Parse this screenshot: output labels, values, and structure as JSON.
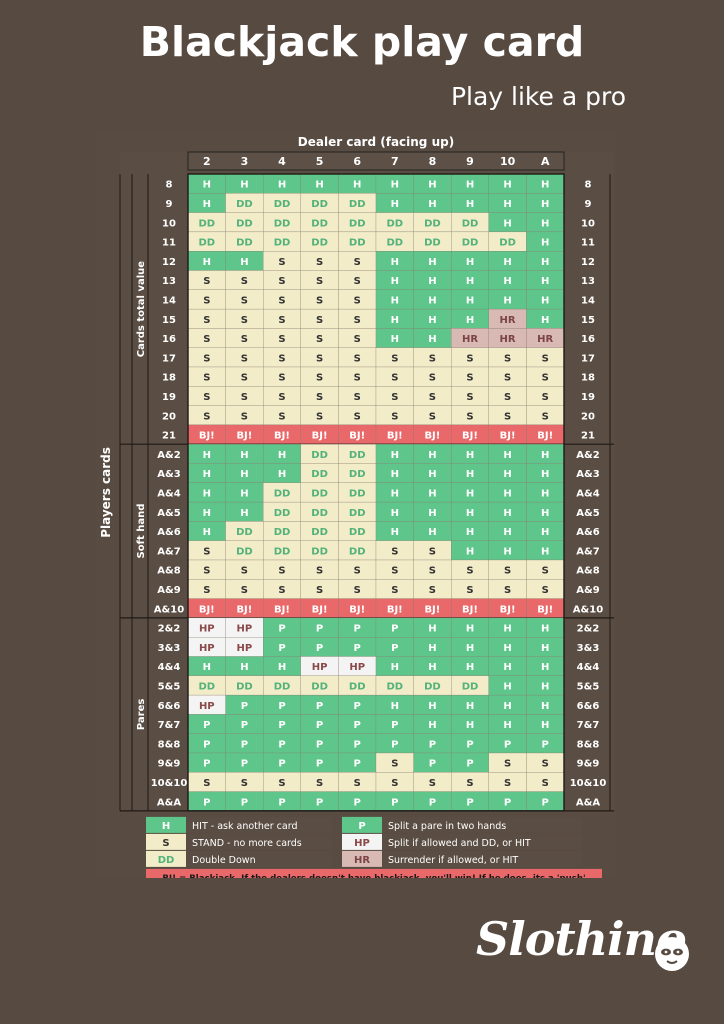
{
  "title": "Blackjack play card",
  "subtitle": "Play like a pro",
  "chart": {
    "dealer_header": "Dealer card (facing up)",
    "dealer_cards": [
      "2",
      "3",
      "4",
      "5",
      "6",
      "7",
      "8",
      "9",
      "10",
      "A"
    ],
    "players_cards_label": "Players cards",
    "sections": [
      {
        "label": "Cards total value",
        "rows": [
          {
            "hand": "8",
            "actions": [
              "H",
              "H",
              "H",
              "H",
              "H",
              "H",
              "H",
              "H",
              "H",
              "H"
            ]
          },
          {
            "hand": "9",
            "actions": [
              "H",
              "DD",
              "DD",
              "DD",
              "DD",
              "H",
              "H",
              "H",
              "H",
              "H"
            ]
          },
          {
            "hand": "10",
            "actions": [
              "DD",
              "DD",
              "DD",
              "DD",
              "DD",
              "DD",
              "DD",
              "DD",
              "H",
              "H"
            ]
          },
          {
            "hand": "11",
            "actions": [
              "DD",
              "DD",
              "DD",
              "DD",
              "DD",
              "DD",
              "DD",
              "DD",
              "DD",
              "H"
            ]
          },
          {
            "hand": "12",
            "actions": [
              "H",
              "H",
              "S",
              "S",
              "S",
              "H",
              "H",
              "H",
              "H",
              "H"
            ]
          },
          {
            "hand": "13",
            "actions": [
              "S",
              "S",
              "S",
              "S",
              "S",
              "H",
              "H",
              "H",
              "H",
              "H"
            ]
          },
          {
            "hand": "14",
            "actions": [
              "S",
              "S",
              "S",
              "S",
              "S",
              "H",
              "H",
              "H",
              "H",
              "H"
            ]
          },
          {
            "hand": "15",
            "actions": [
              "S",
              "S",
              "S",
              "S",
              "S",
              "H",
              "H",
              "H",
              "HR",
              "H"
            ]
          },
          {
            "hand": "16",
            "actions": [
              "S",
              "S",
              "S",
              "S",
              "S",
              "H",
              "H",
              "HR",
              "HR",
              "HR"
            ]
          },
          {
            "hand": "17",
            "actions": [
              "S",
              "S",
              "S",
              "S",
              "S",
              "S",
              "S",
              "S",
              "S",
              "S"
            ]
          },
          {
            "hand": "18",
            "actions": [
              "S",
              "S",
              "S",
              "S",
              "S",
              "S",
              "S",
              "S",
              "S",
              "S"
            ]
          },
          {
            "hand": "19",
            "actions": [
              "S",
              "S",
              "S",
              "S",
              "S",
              "S",
              "S",
              "S",
              "S",
              "S"
            ]
          },
          {
            "hand": "20",
            "actions": [
              "S",
              "S",
              "S",
              "S",
              "S",
              "S",
              "S",
              "S",
              "S",
              "S"
            ]
          },
          {
            "hand": "21",
            "actions": [
              "BJ!",
              "BJ!",
              "BJ!",
              "BJ!",
              "BJ!",
              "BJ!",
              "BJ!",
              "BJ!",
              "BJ!",
              "BJ!"
            ]
          }
        ]
      },
      {
        "label": "Soft hand",
        "rows": [
          {
            "hand": "A&2",
            "actions": [
              "H",
              "H",
              "H",
              "DD",
              "DD",
              "H",
              "H",
              "H",
              "H",
              "H"
            ]
          },
          {
            "hand": "A&3",
            "actions": [
              "H",
              "H",
              "H",
              "DD",
              "DD",
              "H",
              "H",
              "H",
              "H",
              "H"
            ]
          },
          {
            "hand": "A&4",
            "actions": [
              "H",
              "H",
              "DD",
              "DD",
              "DD",
              "H",
              "H",
              "H",
              "H",
              "H"
            ]
          },
          {
            "hand": "A&5",
            "actions": [
              "H",
              "H",
              "DD",
              "DD",
              "DD",
              "H",
              "H",
              "H",
              "H",
              "H"
            ]
          },
          {
            "hand": "A&6",
            "actions": [
              "H",
              "DD",
              "DD",
              "DD",
              "DD",
              "H",
              "H",
              "H",
              "H",
              "H"
            ]
          },
          {
            "hand": "A&7",
            "actions": [
              "S",
              "DD",
              "DD",
              "DD",
              "DD",
              "S",
              "S",
              "H",
              "H",
              "H"
            ]
          },
          {
            "hand": "A&8",
            "actions": [
              "S",
              "S",
              "S",
              "S",
              "S",
              "S",
              "S",
              "S",
              "S",
              "S"
            ]
          },
          {
            "hand": "A&9",
            "actions": [
              "S",
              "S",
              "S",
              "S",
              "S",
              "S",
              "S",
              "S",
              "S",
              "S"
            ]
          },
          {
            "hand": "A&10",
            "actions": [
              "BJ!",
              "BJ!",
              "BJ!",
              "BJ!",
              "BJ!",
              "BJ!",
              "BJ!",
              "BJ!",
              "BJ!",
              "BJ!"
            ]
          }
        ]
      },
      {
        "label": "Pares",
        "rows": [
          {
            "hand": "2&2",
            "actions": [
              "HP",
              "HP",
              "P",
              "P",
              "P",
              "P",
              "H",
              "H",
              "H",
              "H"
            ]
          },
          {
            "hand": "3&3",
            "actions": [
              "HP",
              "HP",
              "P",
              "P",
              "P",
              "P",
              "H",
              "H",
              "H",
              "H"
            ]
          },
          {
            "hand": "4&4",
            "actions": [
              "H",
              "H",
              "H",
              "HP",
              "HP",
              "H",
              "H",
              "H",
              "H",
              "H"
            ]
          },
          {
            "hand": "5&5",
            "actions": [
              "DD",
              "DD",
              "DD",
              "DD",
              "DD",
              "DD",
              "DD",
              "DD",
              "H",
              "H"
            ]
          },
          {
            "hand": "6&6",
            "actions": [
              "HP",
              "P",
              "P",
              "P",
              "P",
              "H",
              "H",
              "H",
              "H",
              "H"
            ]
          },
          {
            "hand": "7&7",
            "actions": [
              "P",
              "P",
              "P",
              "P",
              "P",
              "P",
              "H",
              "H",
              "H",
              "H"
            ]
          },
          {
            "hand": "8&8",
            "actions": [
              "P",
              "P",
              "P",
              "P",
              "P",
              "P",
              "P",
              "P",
              "P",
              "P"
            ]
          },
          {
            "hand": "9&9",
            "actions": [
              "P",
              "P",
              "P",
              "P",
              "P",
              "S",
              "P",
              "P",
              "S",
              "S"
            ]
          },
          {
            "hand": "10&10",
            "actions": [
              "S",
              "S",
              "S",
              "S",
              "S",
              "S",
              "S",
              "S",
              "S",
              "S"
            ]
          },
          {
            "hand": "A&A",
            "actions": [
              "P",
              "P",
              "P",
              "P",
              "P",
              "P",
              "P",
              "P",
              "P",
              "P"
            ]
          }
        ]
      }
    ],
    "legend": [
      {
        "code": "H",
        "text": "HIT - ask another card"
      },
      {
        "code": "P",
        "text": "Split a pare in two hands"
      },
      {
        "code": "S",
        "text": "STAND - no more cards"
      },
      {
        "code": "HP",
        "text": "Split if allowed and DD, or HIT"
      },
      {
        "code": "DD",
        "text": "Double Down"
      },
      {
        "code": "HR",
        "text": "Surrender if allowed, or HIT"
      }
    ],
    "bj_note": "BJ! = Blackjack. If the dealers doesn't have blackjack, you'll win! If he does, its a 'push'",
    "colors": {
      "H": {
        "fill": "#5ec68a",
        "text": "#ffffff"
      },
      "P": {
        "fill": "#5ec68a",
        "text": "#ffffff"
      },
      "S": {
        "fill": "#f2ecc9",
        "text": "#333333"
      },
      "DD": {
        "fill": "#f2ecc9",
        "text": "#52b27a"
      },
      "HP": {
        "fill": "#f4f4f4",
        "text": "#8b4a4a"
      },
      "HR": {
        "fill": "#d9b9b3",
        "text": "#7b4545"
      },
      "BJ!": {
        "fill": "#e9686a",
        "text": "#ffffff"
      }
    }
  },
  "brand": {
    "name": "Slothino"
  }
}
